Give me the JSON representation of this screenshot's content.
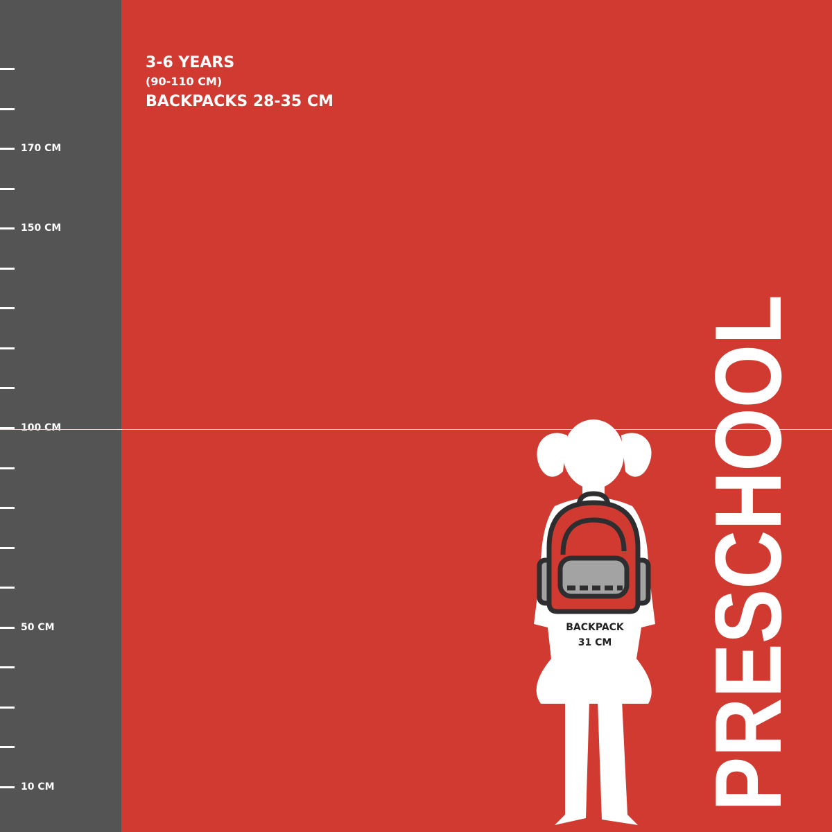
{
  "header": {
    "age": "3-6 YEARS",
    "height_range": "(90-110 CM)",
    "backpack_range": "BACKPACKS 28-35 CM"
  },
  "ruler": {
    "labels": [
      {
        "cm": 170,
        "text": "170 CM"
      },
      {
        "cm": 150,
        "text": "150 CM"
      },
      {
        "cm": 100,
        "text": "100 CM"
      },
      {
        "cm": 50,
        "text": "50 CM"
      },
      {
        "cm": 10,
        "text": "10 CM"
      }
    ]
  },
  "figure": {
    "backpack_label": "BACKPACK",
    "backpack_size": "31 CM"
  },
  "category": "PRESCHOOL",
  "colors": {
    "background": "#d13a30",
    "ruler": "#545454",
    "silhouette": "#ffffff",
    "backpack_outline": "#2e2e30",
    "backpack_pocket": "#a3a3a3"
  }
}
